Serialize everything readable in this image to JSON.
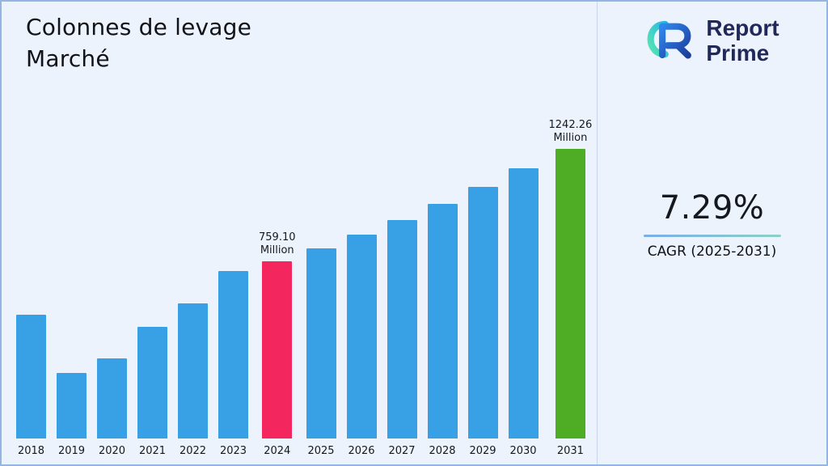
{
  "header": {
    "title": "Colonnes de levage\nMarché"
  },
  "brand": {
    "name": "Report\nPrime",
    "logo_icon": "report-prime-logo",
    "navy": "#20295a",
    "blue_gradient": [
      "#2f86ec",
      "#1c3e9e"
    ],
    "teal_gradient": [
      "#57e6b0",
      "#29b7e6"
    ]
  },
  "cagr": {
    "value": "7.29%",
    "label": "CAGR (2025-2031)",
    "underline_colors": [
      "#79aee9",
      "#8ed0c4"
    ]
  },
  "chart_data": {
    "type": "bar",
    "title": "Colonnes de levage Marché",
    "unit": "Million",
    "categories": [
      "2018",
      "2019",
      "2020",
      "2021",
      "2022",
      "2023",
      "2024",
      "2025",
      "2026",
      "2027",
      "2028",
      "2029",
      "2030",
      "2031"
    ],
    "values": [
      531,
      281,
      343,
      479,
      578,
      719,
      759.1,
      814.4,
      873.8,
      937.5,
      1005.9,
      1079.2,
      1157.9,
      1242.26
    ],
    "ylim": [
      0,
      1300
    ],
    "grid": false,
    "legend": false,
    "xlabel": "",
    "ylabel": "",
    "colors": {
      "default": "#38a0e5",
      "overrides": {
        "2024": "#f4265e",
        "2031": "#4ead24"
      }
    },
    "annotations": [
      {
        "category": "2024",
        "label": "759.10\nMillion"
      },
      {
        "category": "2031",
        "label": "1242.26\nMillion"
      }
    ]
  }
}
